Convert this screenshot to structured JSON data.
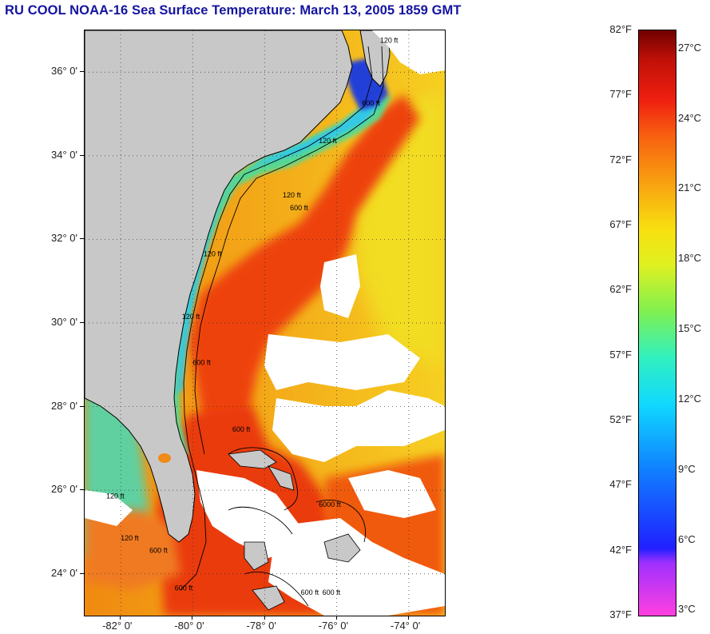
{
  "header": {
    "title": "RU COOL  NOAA-16  Sea Surface Temperature:  March 13, 2005 1859 GMT"
  },
  "map": {
    "extent": {
      "lon_min": -83.0,
      "lon_max": -73.0,
      "lat_min": 23.0,
      "lat_max": 37.0
    },
    "lat_ticks": [
      {
        "value": 36,
        "label": "36° 0'"
      },
      {
        "value": 34,
        "label": "34° 0'"
      },
      {
        "value": 32,
        "label": "32° 0'"
      },
      {
        "value": 30,
        "label": "30° 0'"
      },
      {
        "value": 28,
        "label": "28° 0'"
      },
      {
        "value": 26,
        "label": "26° 0'"
      },
      {
        "value": 24,
        "label": "24° 0'"
      }
    ],
    "lon_ticks": [
      {
        "value": -82,
        "label": "-82° 0'"
      },
      {
        "value": -80,
        "label": "-80° 0'"
      },
      {
        "value": -78,
        "label": "-78° 0'"
      },
      {
        "value": -76,
        "label": "-76° 0'"
      },
      {
        "value": -74,
        "label": "-74° 0'"
      }
    ],
    "contour_labels": [
      {
        "text": "120 ft",
        "lon": -74.8,
        "lat": 36.7
      },
      {
        "text": "600 ft",
        "lon": -75.3,
        "lat": 35.2
      },
      {
        "text": "120 ft",
        "lon": -76.5,
        "lat": 34.3
      },
      {
        "text": "120 ft",
        "lon": -77.5,
        "lat": 33.0
      },
      {
        "text": "600 ft",
        "lon": -77.3,
        "lat": 32.7
      },
      {
        "text": "120 ft",
        "lon": -79.7,
        "lat": 31.6
      },
      {
        "text": "120 ft",
        "lon": -80.3,
        "lat": 30.1
      },
      {
        "text": "600 ft",
        "lon": -80.0,
        "lat": 29.0
      },
      {
        "text": "600 ft",
        "lon": -78.9,
        "lat": 27.4
      },
      {
        "text": "6000 ft",
        "lon": -76.5,
        "lat": 25.6
      },
      {
        "text": "120 ft",
        "lon": -82.4,
        "lat": 25.8
      },
      {
        "text": "120 ft",
        "lon": -82.0,
        "lat": 24.8
      },
      {
        "text": "600 ft",
        "lon": -81.2,
        "lat": 24.5
      },
      {
        "text": "600 ft",
        "lon": -80.5,
        "lat": 23.6
      },
      {
        "text": "600 ft",
        "lon": -77.0,
        "lat": 23.5
      },
      {
        "text": "600 ft",
        "lon": -76.4,
        "lat": 23.5
      }
    ]
  },
  "colorbar": {
    "fahrenheit_labels": [
      "82°F",
      "77°F",
      "72°F",
      "67°F",
      "62°F",
      "57°F",
      "52°F",
      "47°F",
      "42°F",
      "37°F"
    ],
    "celsius_labels": [
      "27°C",
      "24°C",
      "21°C",
      "18°C",
      "15°C",
      "12°C",
      "9°C",
      "6°C",
      "3°C"
    ],
    "f_min": 37,
    "f_max": 82,
    "c_values": [
      27,
      24,
      21,
      18,
      15,
      12,
      9,
      6,
      3
    ],
    "colors": {
      "land": "#c8c8c8",
      "cloud": "#ffffff",
      "gulf_stream": "#f0400c",
      "offshore": "#f4a614"
    }
  }
}
